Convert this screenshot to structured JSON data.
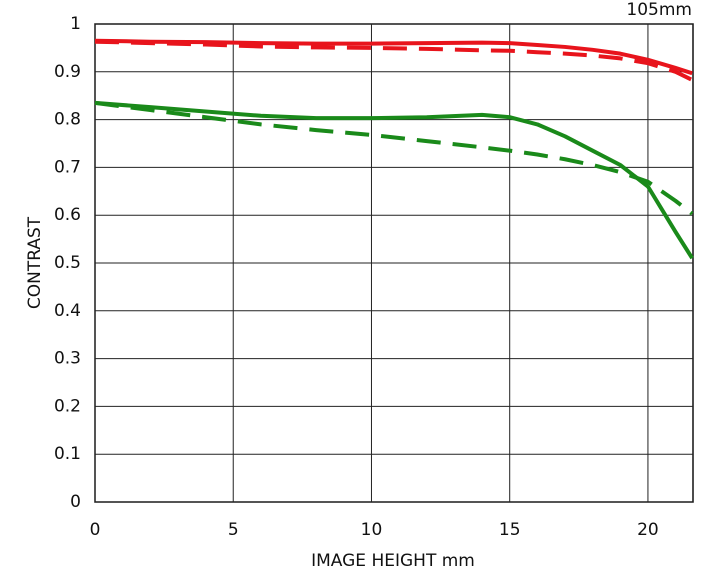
{
  "chart_data": {
    "type": "line",
    "title": "105mm",
    "x_label": "IMAGE HEIGHT   mm",
    "y_label": "CONTRAST",
    "x": [
      0,
      2,
      4,
      6,
      8,
      10,
      12,
      14,
      15,
      16,
      17,
      18,
      19,
      20,
      21,
      21.6
    ],
    "series": [
      {
        "color": "#e8141c",
        "linestyle": "solid",
        "values": [
          0.965,
          0.963,
          0.962,
          0.96,
          0.959,
          0.959,
          0.96,
          0.961,
          0.96,
          0.956,
          0.952,
          0.946,
          0.938,
          0.925,
          0.908,
          0.897
        ]
      },
      {
        "color": "#e8141c",
        "linestyle": "dashed",
        "values": [
          0.963,
          0.96,
          0.957,
          0.953,
          0.951,
          0.95,
          0.948,
          0.945,
          0.944,
          0.941,
          0.938,
          0.934,
          0.928,
          0.918,
          0.9,
          0.883
        ]
      },
      {
        "color": "#1a8a1a",
        "linestyle": "solid",
        "values": [
          0.835,
          0.826,
          0.817,
          0.808,
          0.803,
          0.803,
          0.805,
          0.81,
          0.805,
          0.79,
          0.765,
          0.735,
          0.705,
          0.66,
          0.565,
          0.51
        ]
      },
      {
        "color": "#1a8a1a",
        "linestyle": "dashed",
        "values": [
          0.835,
          0.82,
          0.805,
          0.79,
          0.778,
          0.768,
          0.755,
          0.742,
          0.735,
          0.727,
          0.717,
          0.705,
          0.69,
          0.67,
          0.63,
          0.603
        ]
      }
    ],
    "xlim": [
      0,
      21.63
    ],
    "xticks": [
      0,
      5,
      10,
      15,
      20
    ],
    "ylim": [
      0,
      1
    ],
    "yticks": [
      0,
      0.1,
      0.2,
      0.3,
      0.4,
      0.5,
      0.6,
      0.7,
      0.8,
      0.9,
      1
    ],
    "grid": true
  }
}
